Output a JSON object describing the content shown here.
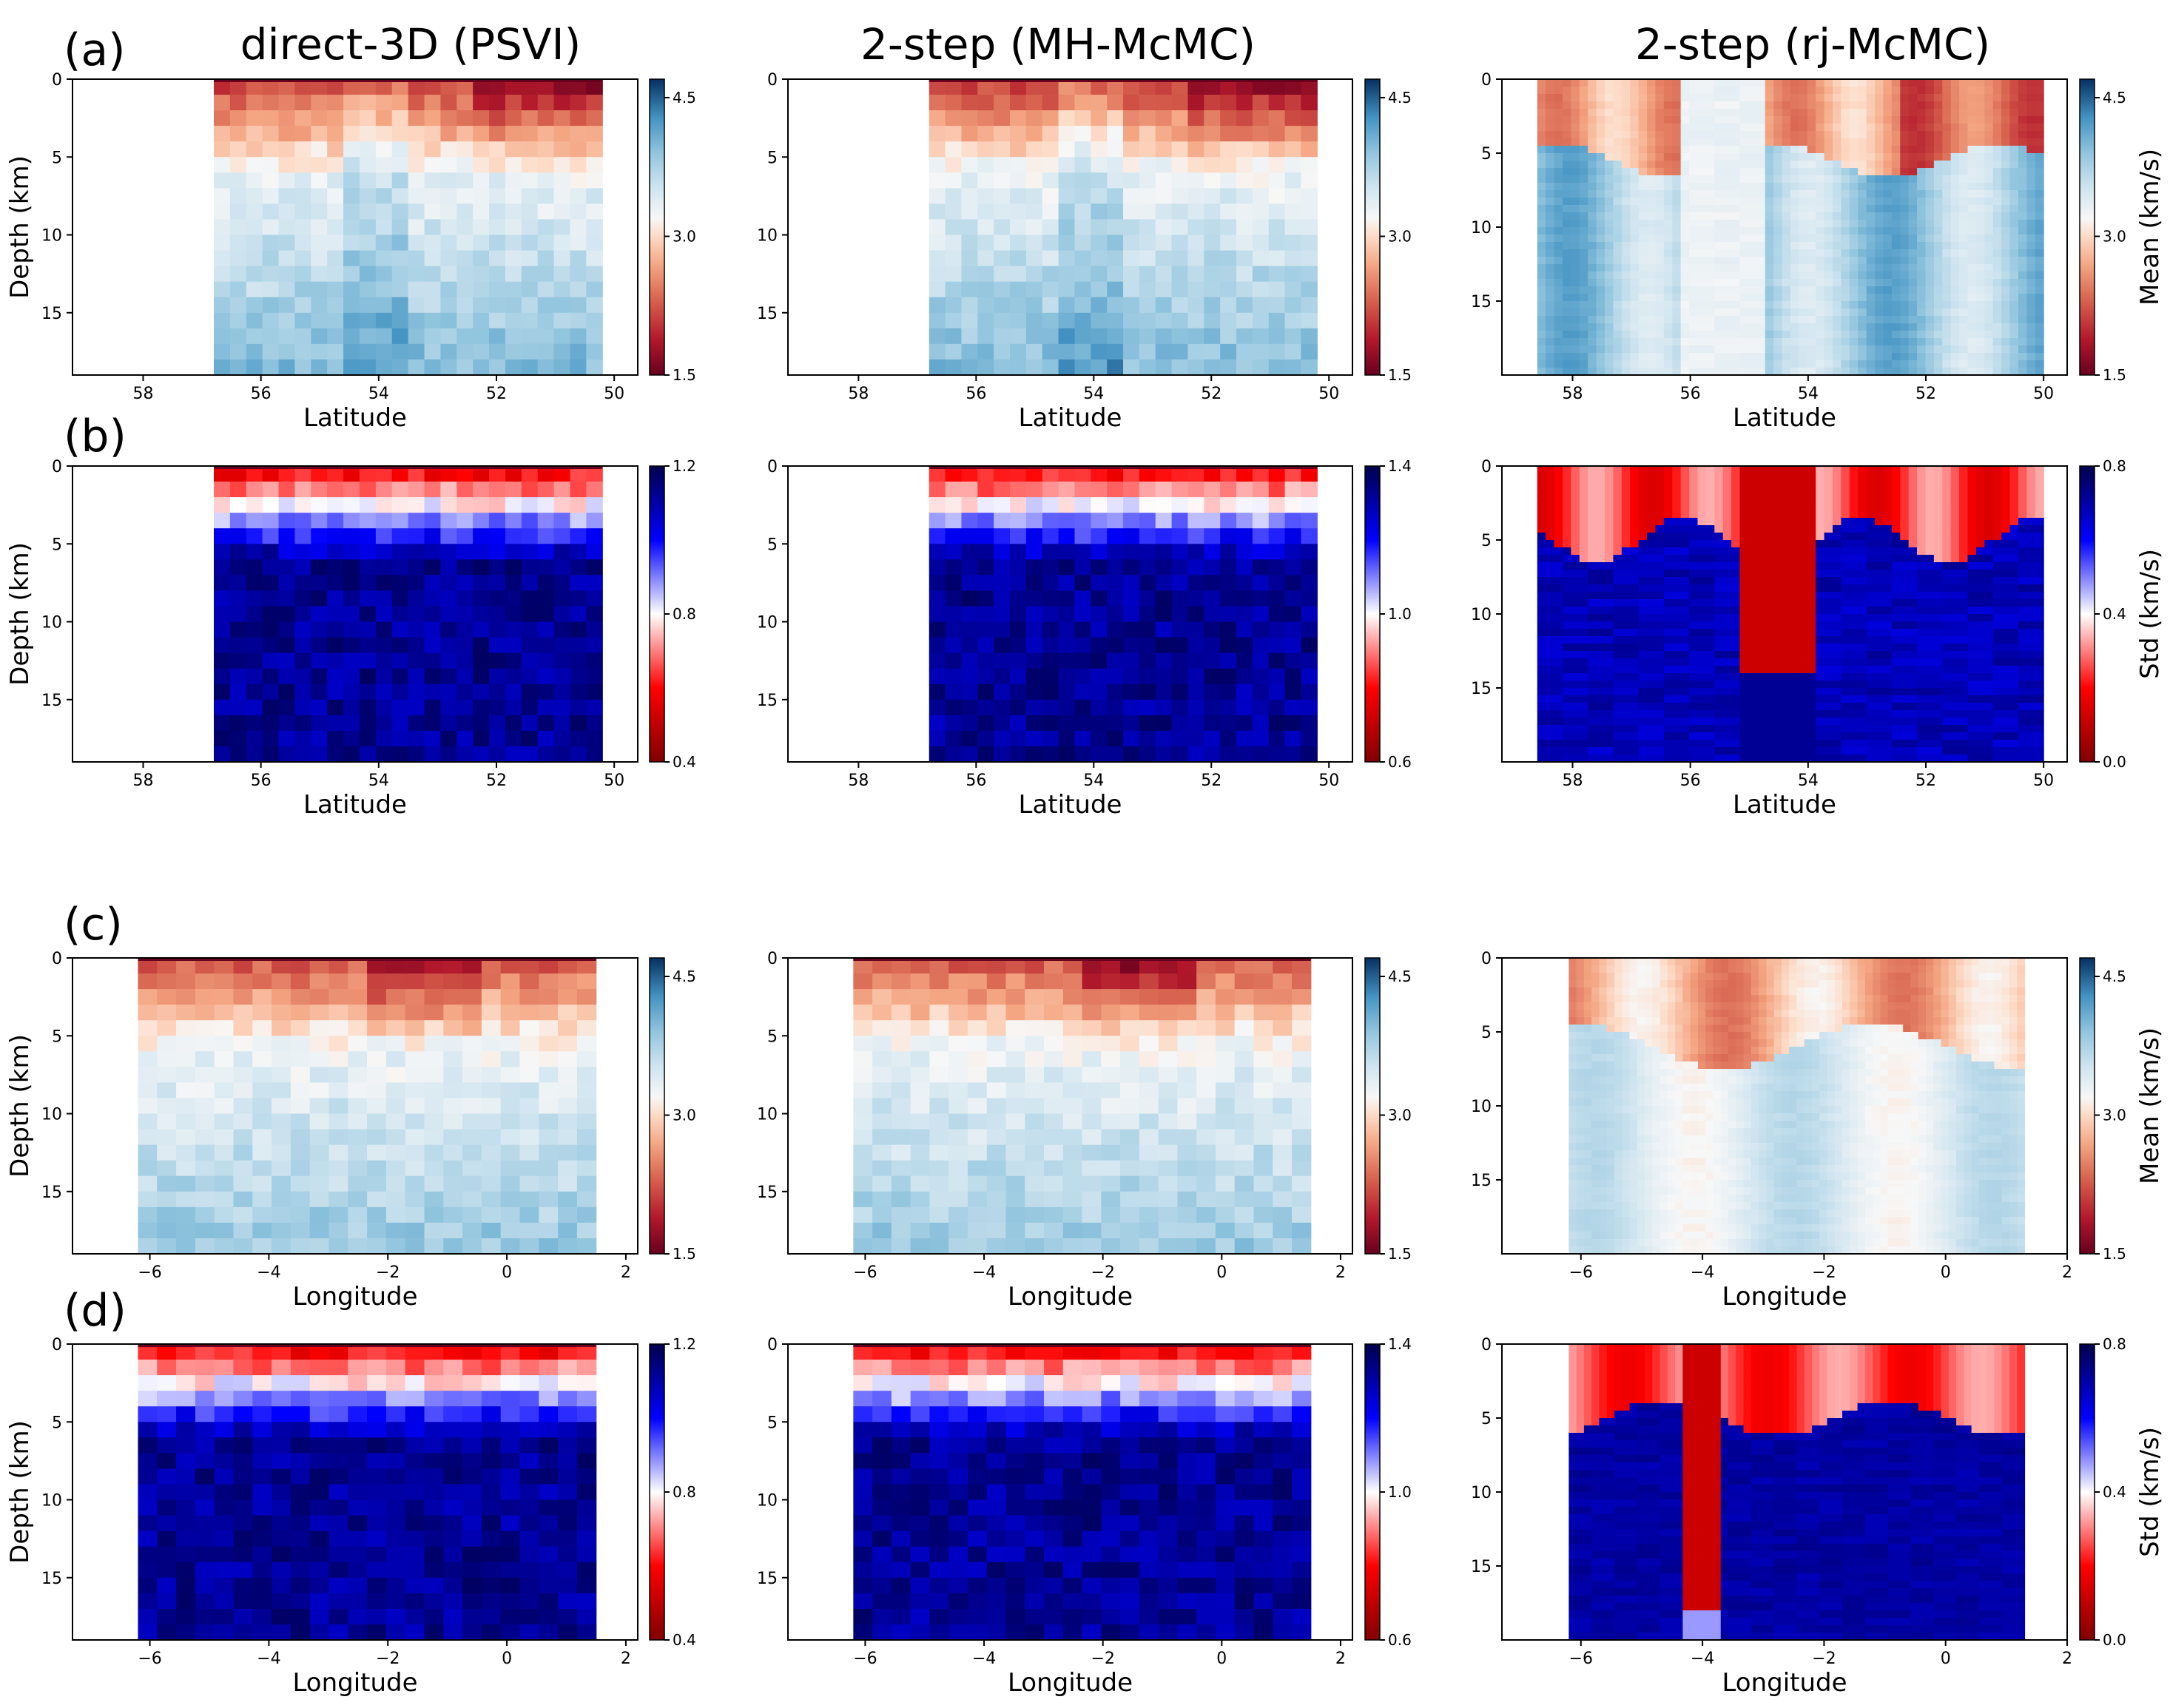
{
  "figure": {
    "column_titles": [
      "direct-3D (PSVI)",
      "2-step (MH-McMC)",
      "2-step (rj-McMC)"
    ],
    "row_labels": [
      "(a)",
      "(b)",
      "(c)",
      "(d)"
    ]
  },
  "chart_data": [
    {
      "id": "a1",
      "type": "heatmap",
      "row": "a",
      "col": 1,
      "title": "direct-3D (PSVI)",
      "xlabel": "Latitude",
      "ylabel": "Depth (km)",
      "xlim": [
        59.2,
        49.6
      ],
      "ylim": [
        19,
        0
      ],
      "xticks": [
        58,
        56,
        54,
        52,
        50
      ],
      "yticks": [
        0,
        5,
        10,
        15
      ],
      "data_xrange": [
        56.8,
        50.2
      ],
      "colormap": "RdBu",
      "clim": [
        1.5,
        4.7
      ],
      "colorbar_ticks": [
        "1.5",
        "3.0",
        "4.5"
      ],
      "colorbar_label": "",
      "style": "pixel",
      "field": "mean_lat"
    },
    {
      "id": "a2",
      "type": "heatmap",
      "row": "a",
      "col": 2,
      "title": "2-step (MH-McMC)",
      "xlabel": "Latitude",
      "ylabel": "",
      "xlim": [
        59.2,
        49.6
      ],
      "ylim": [
        19,
        0
      ],
      "xticks": [
        58,
        56,
        54,
        52,
        50
      ],
      "yticks": [
        0,
        5,
        10,
        15
      ],
      "data_xrange": [
        56.8,
        50.2
      ],
      "colormap": "RdBu",
      "clim": [
        1.5,
        4.7
      ],
      "colorbar_ticks": [
        "1.5",
        "3.0",
        "4.5"
      ],
      "colorbar_label": "",
      "style": "pixel",
      "field": "mean_lat"
    },
    {
      "id": "a3",
      "type": "heatmap",
      "row": "a",
      "col": 3,
      "title": "2-step (rj-McMC)",
      "xlabel": "Latitude",
      "ylabel": "",
      "xlim": [
        59.2,
        49.6
      ],
      "ylim": [
        20,
        0
      ],
      "xticks": [
        58,
        56,
        54,
        52,
        50
      ],
      "yticks": [
        0,
        5,
        10,
        15
      ],
      "data_xrange": [
        58.6,
        50.0
      ],
      "colormap": "RdBu",
      "clim": [
        1.5,
        4.7
      ],
      "colorbar_ticks": [
        "1.5",
        "3.0",
        "4.5"
      ],
      "colorbar_label": "Mean (km/s)",
      "style": "smooth",
      "field": "mean_lat"
    },
    {
      "id": "b1",
      "type": "heatmap",
      "row": "b",
      "col": 1,
      "title": "",
      "xlabel": "Latitude",
      "ylabel": "Depth (km)",
      "xlim": [
        59.2,
        49.6
      ],
      "ylim": [
        19,
        0
      ],
      "xticks": [
        58,
        56,
        54,
        52,
        50
      ],
      "yticks": [
        0,
        5,
        10,
        15
      ],
      "data_xrange": [
        56.8,
        50.2
      ],
      "colormap": "seismic_r",
      "clim": [
        0.4,
        1.2
      ],
      "colorbar_ticks": [
        "0.4",
        "0.8",
        "1.2"
      ],
      "colorbar_label": "",
      "style": "pixel",
      "field": "std_lat"
    },
    {
      "id": "b2",
      "type": "heatmap",
      "row": "b",
      "col": 2,
      "title": "",
      "xlabel": "Latitude",
      "ylabel": "",
      "xlim": [
        59.2,
        49.6
      ],
      "ylim": [
        19,
        0
      ],
      "xticks": [
        58,
        56,
        54,
        52,
        50
      ],
      "yticks": [
        0,
        5,
        10,
        15
      ],
      "data_xrange": [
        56.8,
        50.2
      ],
      "colormap": "seismic_r",
      "clim": [
        0.6,
        1.4
      ],
      "colorbar_ticks": [
        "0.6",
        "1.0",
        "1.4"
      ],
      "colorbar_label": "",
      "style": "pixel",
      "field": "std_lat"
    },
    {
      "id": "b3",
      "type": "heatmap",
      "row": "b",
      "col": 3,
      "title": "",
      "xlabel": "Latitude",
      "ylabel": "",
      "xlim": [
        59.2,
        49.6
      ],
      "ylim": [
        20,
        0
      ],
      "xticks": [
        58,
        56,
        54,
        52,
        50
      ],
      "yticks": [
        0,
        5,
        10,
        15
      ],
      "data_xrange": [
        58.6,
        50.0
      ],
      "colormap": "seismic_r",
      "clim": [
        0.0,
        0.8
      ],
      "colorbar_ticks": [
        "0.0",
        "0.4",
        "0.8"
      ],
      "colorbar_label": "Std (km/s)",
      "style": "smooth",
      "field": "std_lat"
    },
    {
      "id": "c1",
      "type": "heatmap",
      "row": "c",
      "col": 1,
      "title": "",
      "xlabel": "Longitude",
      "ylabel": "Depth (km)",
      "xlim": [
        -7.3,
        2.2
      ],
      "ylim": [
        19,
        0
      ],
      "xticks": [
        -6,
        -4,
        -2,
        0,
        2
      ],
      "yticks": [
        0,
        5,
        10,
        15
      ],
      "data_xrange": [
        -6.2,
        1.5
      ],
      "colormap": "RdBu",
      "clim": [
        1.5,
        4.7
      ],
      "colorbar_ticks": [
        "1.5",
        "3.0",
        "4.5"
      ],
      "colorbar_label": "",
      "style": "pixel",
      "field": "mean_lon"
    },
    {
      "id": "c2",
      "type": "heatmap",
      "row": "c",
      "col": 2,
      "title": "",
      "xlabel": "Longitude",
      "ylabel": "",
      "xlim": [
        -7.3,
        2.2
      ],
      "ylim": [
        19,
        0
      ],
      "xticks": [
        -6,
        -4,
        -2,
        0,
        2
      ],
      "yticks": [
        0,
        5,
        10,
        15
      ],
      "data_xrange": [
        -6.2,
        1.5
      ],
      "colormap": "RdBu",
      "clim": [
        1.5,
        4.7
      ],
      "colorbar_ticks": [
        "1.5",
        "3.0",
        "4.5"
      ],
      "colorbar_label": "",
      "style": "pixel",
      "field": "mean_lon"
    },
    {
      "id": "c3",
      "type": "heatmap",
      "row": "c",
      "col": 3,
      "title": "",
      "xlabel": "Longitude",
      "ylabel": "",
      "xlim": [
        -7.3,
        2.0
      ],
      "ylim": [
        20,
        0
      ],
      "xticks": [
        -6,
        -4,
        -2,
        0,
        2
      ],
      "yticks": [
        0,
        5,
        10,
        15
      ],
      "data_xrange": [
        -6.2,
        1.3
      ],
      "colormap": "RdBu",
      "clim": [
        1.5,
        4.7
      ],
      "colorbar_ticks": [
        "1.5",
        "3.0",
        "4.5"
      ],
      "colorbar_label": "Mean (km/s)",
      "style": "smooth",
      "field": "mean_lon"
    },
    {
      "id": "d1",
      "type": "heatmap",
      "row": "d",
      "col": 1,
      "title": "",
      "xlabel": "Longitude",
      "ylabel": "Depth (km)",
      "xlim": [
        -7.3,
        2.2
      ],
      "ylim": [
        19,
        0
      ],
      "xticks": [
        -6,
        -4,
        -2,
        0,
        2
      ],
      "yticks": [
        0,
        5,
        10,
        15
      ],
      "data_xrange": [
        -6.2,
        1.5
      ],
      "colormap": "seismic_r",
      "clim": [
        0.4,
        1.2
      ],
      "colorbar_ticks": [
        "0.4",
        "0.8",
        "1.2"
      ],
      "colorbar_label": "",
      "style": "pixel",
      "field": "std_lon"
    },
    {
      "id": "d2",
      "type": "heatmap",
      "row": "d",
      "col": 2,
      "title": "",
      "xlabel": "Longitude",
      "ylabel": "",
      "xlim": [
        -7.3,
        2.2
      ],
      "ylim": [
        19,
        0
      ],
      "xticks": [
        -6,
        -4,
        -2,
        0,
        2
      ],
      "yticks": [
        0,
        5,
        10,
        15
      ],
      "data_xrange": [
        -6.2,
        1.5
      ],
      "colormap": "seismic_r",
      "clim": [
        0.6,
        1.4
      ],
      "colorbar_ticks": [
        "0.6",
        "1.0",
        "1.4"
      ],
      "colorbar_label": "",
      "style": "pixel",
      "field": "std_lon"
    },
    {
      "id": "d3",
      "type": "heatmap",
      "row": "d",
      "col": 3,
      "title": "",
      "xlabel": "Longitude",
      "ylabel": "",
      "xlim": [
        -7.3,
        2.0
      ],
      "ylim": [
        20,
        0
      ],
      "xticks": [
        -6,
        -4,
        -2,
        0,
        2
      ],
      "yticks": [
        0,
        5,
        10,
        15
      ],
      "data_xrange": [
        -6.2,
        1.3
      ],
      "colormap": "seismic_r",
      "clim": [
        0.0,
        0.8
      ],
      "colorbar_ticks": [
        "0.0",
        "0.4",
        "0.8"
      ],
      "colorbar_label": "Std (km/s)",
      "style": "smooth",
      "field": "std_lon"
    }
  ]
}
